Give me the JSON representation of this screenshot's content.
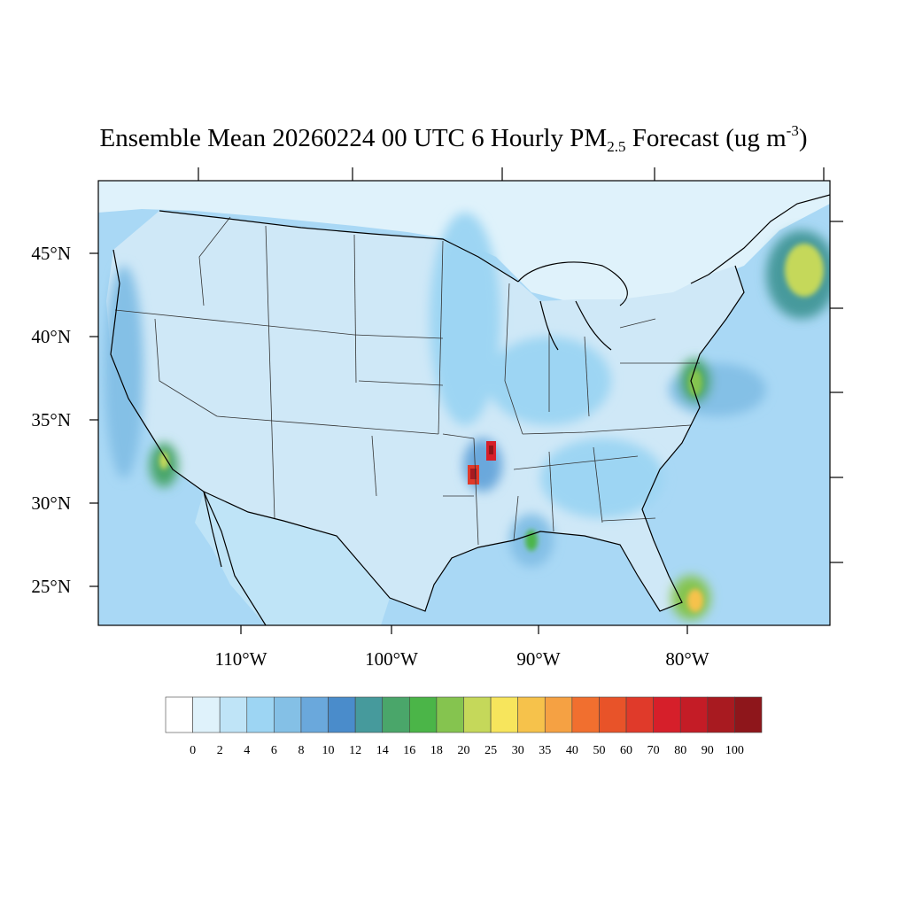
{
  "title": {
    "main": "Ensemble Mean 20260224 00 UTC 6 Hourly PM",
    "sub": "2.5",
    "suffix": " Forecast (ug m",
    "sup": "-3",
    "end": ")"
  },
  "map": {
    "lat_labels": [
      "45°N",
      "40°N",
      "35°N",
      "30°N",
      "25°N"
    ],
    "lon_labels": [
      "110°W",
      "100°W",
      "90°W",
      "80°W"
    ],
    "ocean_color": "#a9d8f5",
    "land_color": "#cfe8f7"
  },
  "colorbar": {
    "labels": [
      "0",
      "2",
      "4",
      "6",
      "8",
      "10",
      "12",
      "14",
      "16",
      "18",
      "20",
      "25",
      "30",
      "35",
      "40",
      "50",
      "60",
      "70",
      "80",
      "90",
      "100"
    ],
    "colors": [
      "#ffffff",
      "#dff2fb",
      "#bfe4f7",
      "#9dd5f3",
      "#84c0e6",
      "#6aa8dc",
      "#4a8ccb",
      "#469a9c",
      "#4aa66a",
      "#4bb548",
      "#85c44f",
      "#c5d85a",
      "#f7e55c",
      "#f6c24b",
      "#f5a143",
      "#f16f2f",
      "#e85329",
      "#e03a2a",
      "#d61f2a",
      "#c41c26",
      "#a81a20",
      "#8e161b"
    ]
  }
}
